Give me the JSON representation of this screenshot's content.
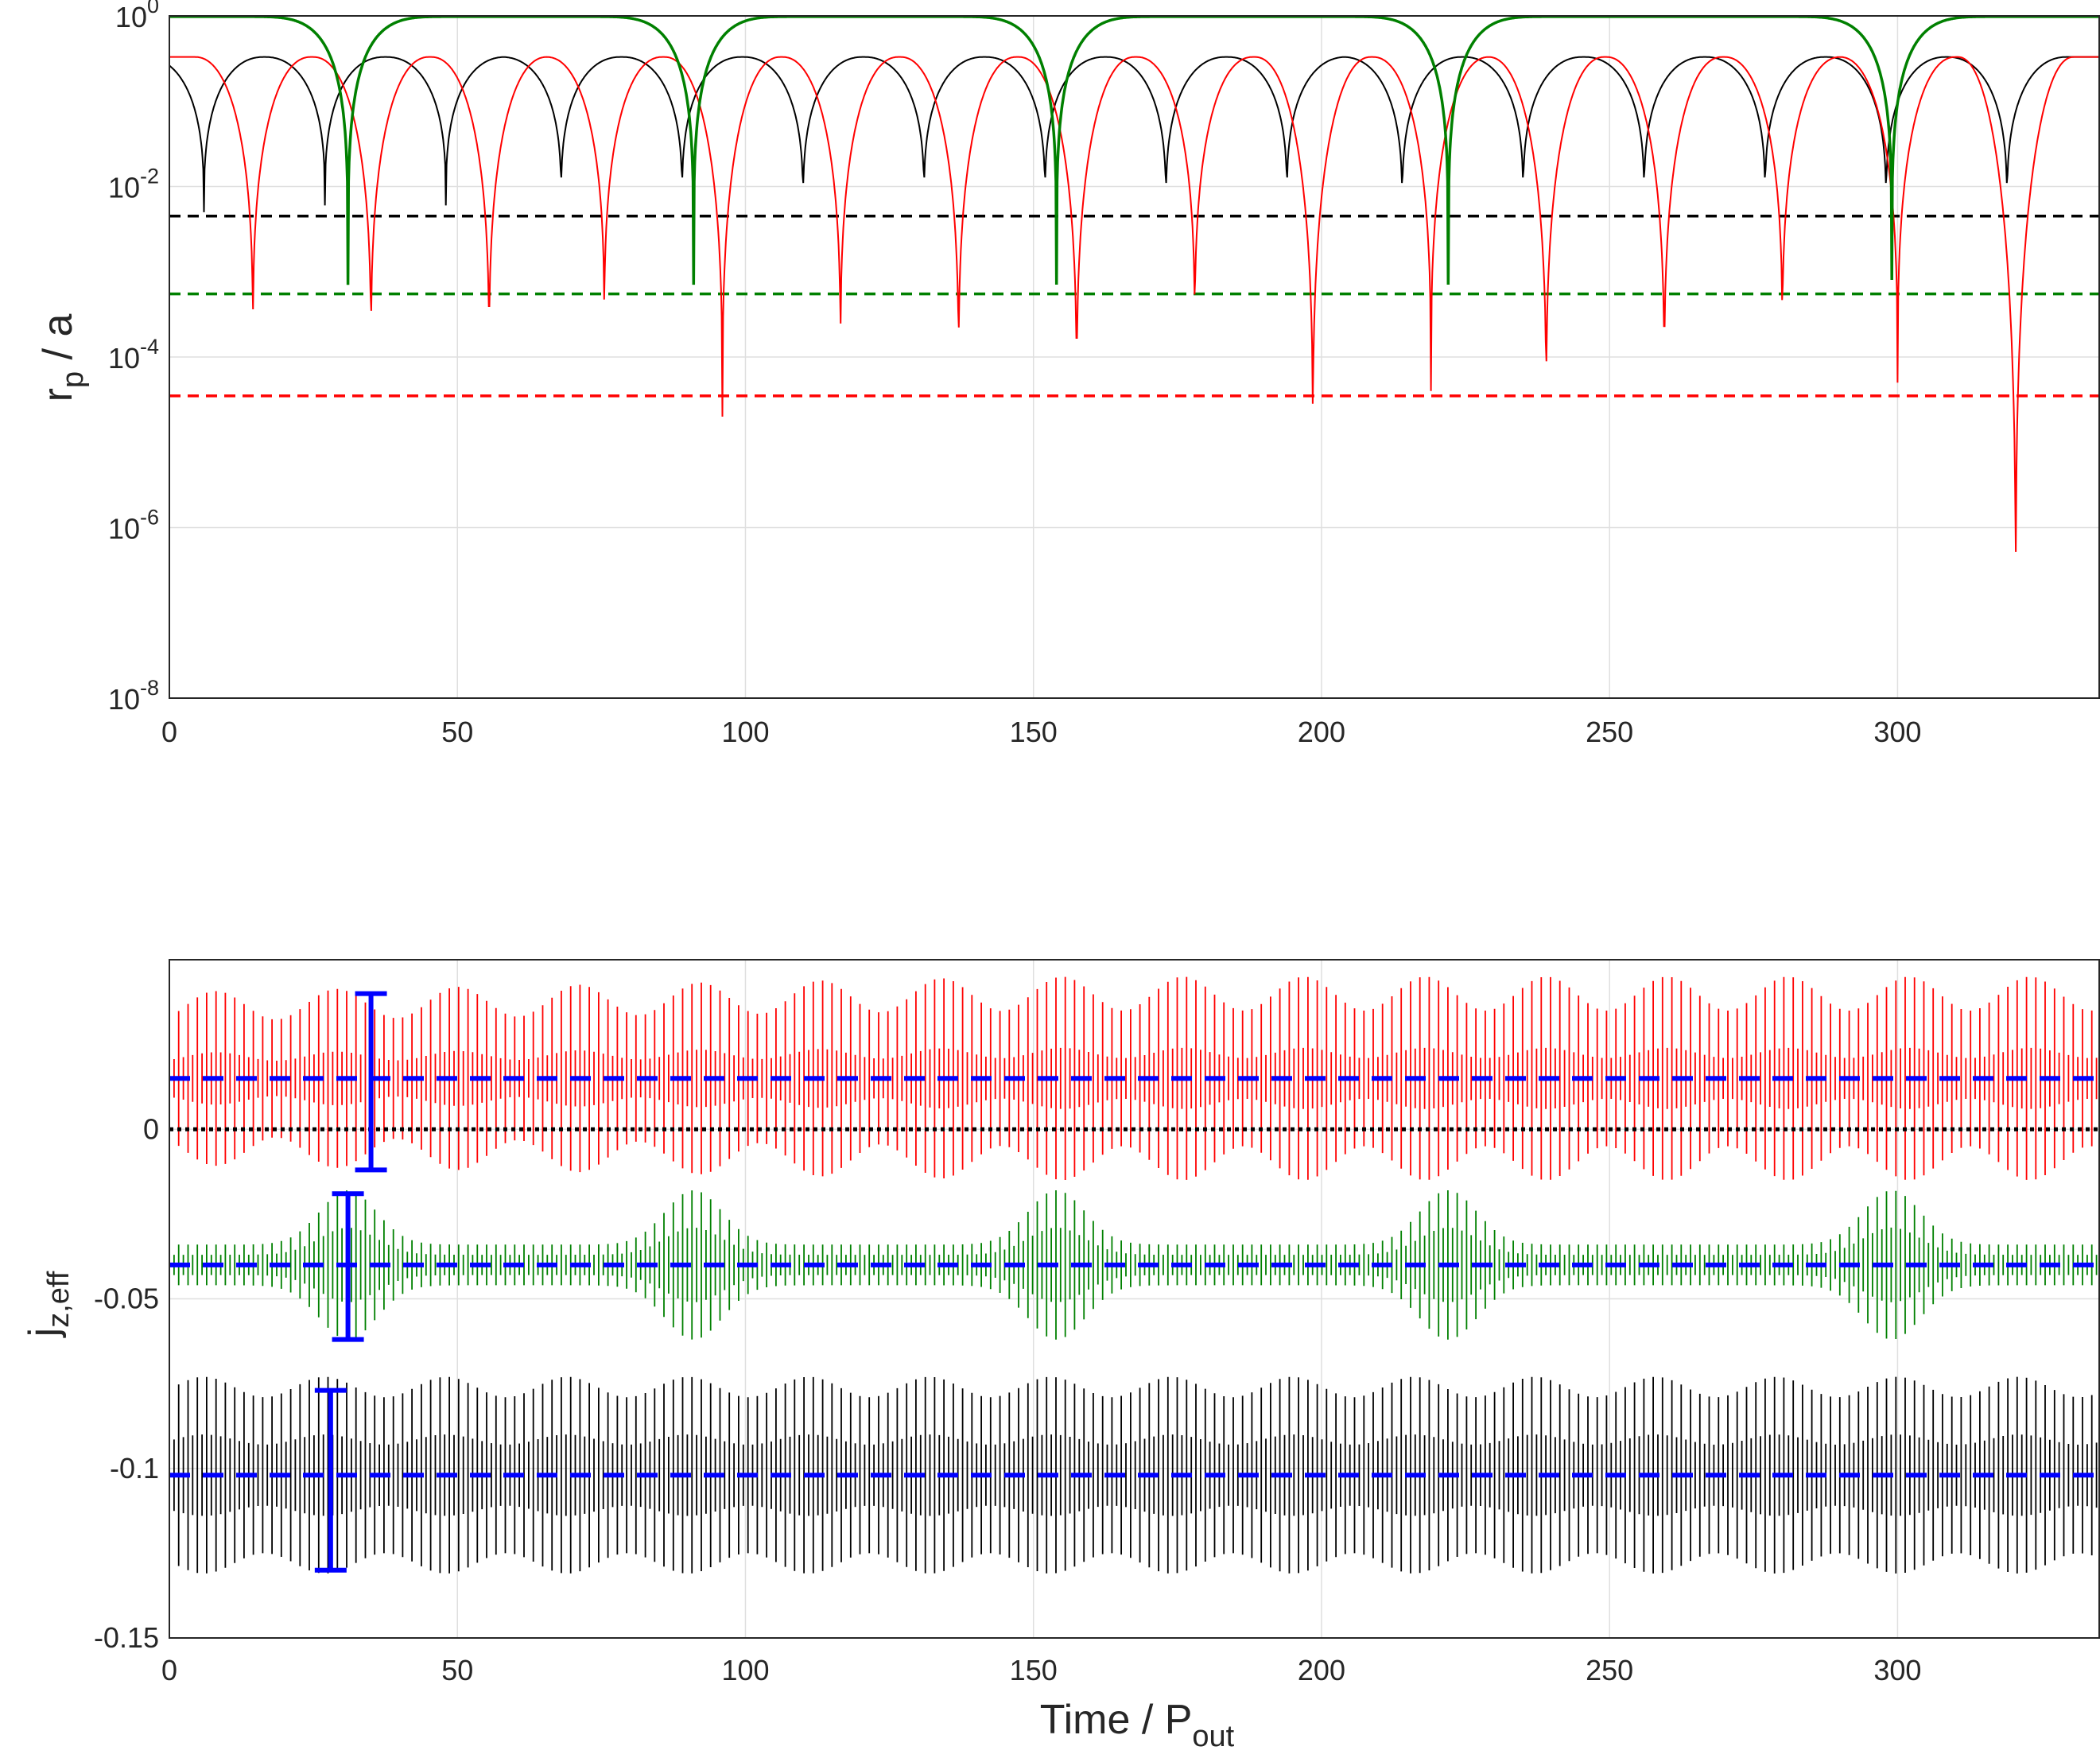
{
  "figure": {
    "background": "#ffffff",
    "axis_color": "#262626",
    "grid_color": "#dfdfdf"
  },
  "chart_data": [
    {
      "type": "line",
      "yscale": "log",
      "ylabel": {
        "base": "r",
        "sub": "p",
        "rest": " / a"
      },
      "xlim": [
        0,
        335
      ],
      "ylim": [
        1e-08,
        1
      ],
      "xticks": [
        "0",
        "50",
        "100",
        "150",
        "200",
        "250",
        "300"
      ],
      "xtick_values": [
        0,
        50,
        100,
        150,
        200,
        250,
        300
      ],
      "yticks": [
        {
          "base": "10",
          "exp": "0"
        },
        {
          "base": "10",
          "exp": "-2"
        },
        {
          "base": "10",
          "exp": "-4"
        },
        {
          "base": "10",
          "exp": "-6"
        },
        {
          "base": "10",
          "exp": "-8"
        }
      ],
      "ytick_values": [
        1,
        0.01,
        0.0001,
        1e-06,
        1e-08
      ],
      "grid": true,
      "series": [
        {
          "color": "#000000",
          "max": 0.33,
          "period": 20.9,
          "min_times": [
            6,
            27,
            48,
            68,
            89,
            110,
            131,
            152,
            173,
            194,
            214,
            235,
            256,
            277,
            298,
            319
          ],
          "min_values": [
            0.005,
            0.006,
            0.006,
            0.006,
            0.006,
            0.005,
            0.006,
            0.006,
            0.005,
            0.006,
            0.005,
            0.006,
            0.006,
            0.006,
            0.005,
            0.005
          ]
        },
        {
          "color": "#ff0000",
          "max": 0.33,
          "period": 20.3,
          "min_times": [
            14.5,
            35,
            55.5,
            75.5,
            96,
            116.5,
            137,
            157.5,
            178,
            198.5,
            219,
            239,
            259.5,
            280,
            300,
            320.5
          ],
          "min_values": [
            0.00011,
            7e-05,
            6e-05,
            0.00015,
            2e-05,
            7e-05,
            4e-05,
            2e-05,
            0.00012,
            5.5e-06,
            4e-05,
            1.3e-05,
            3e-05,
            0.0001,
            5e-05,
            5e-08
          ]
        },
        {
          "color": "#008000",
          "max": 0.98,
          "min_times": [
            31,
            91,
            154,
            222,
            299
          ],
          "min_values": [
            0.0007,
            0.0007,
            0.0007,
            0.0007,
            0.0008
          ]
        }
      ],
      "reference_lines": [
        {
          "color": "#000000",
          "value": 0.0045
        },
        {
          "color": "#008000",
          "value": 0.00055
        },
        {
          "color": "#ff0000",
          "value": 3.5e-05
        }
      ]
    },
    {
      "type": "line",
      "ylabel": {
        "base": "j",
        "sub": "z,eff"
      },
      "xlabel": {
        "base": "Time  / P",
        "sub": "out"
      },
      "xlim": [
        0,
        335
      ],
      "ylim": [
        -0.15,
        0.05
      ],
      "xticks": [
        "0",
        "50",
        "100",
        "150",
        "200",
        "250",
        "300"
      ],
      "xtick_values": [
        0,
        50,
        100,
        150,
        200,
        250,
        300
      ],
      "yticks": [
        "0",
        "-0.05",
        "-0.1",
        "-0.15"
      ],
      "ytick_values": [
        0,
        -0.05,
        -0.1,
        -0.15
      ],
      "grid": true,
      "series": [
        {
          "color": "#ff0000",
          "center": 0.015,
          "outer_amplitude": [
            0.02,
            0.03
          ],
          "inner_amplitude": [
            0.006,
            0.009
          ],
          "modulation_period": 21,
          "oscillation_period": 1.62
        },
        {
          "color": "#008000",
          "center": -0.04,
          "outer_amplitude": [
            0.006,
            0.022
          ],
          "inner_amplitude": [
            0.003,
            0.011
          ],
          "burst_times": [
            31,
            91,
            154,
            222,
            299
          ],
          "oscillation_period": 1.62
        },
        {
          "color": "#000000",
          "center": -0.102,
          "outer_amplitude": [
            0.023,
            0.029
          ],
          "inner_amplitude": [
            0.009,
            0.012
          ],
          "modulation_period": 21,
          "oscillation_period": 1.62
        }
      ],
      "mean_lines": [
        {
          "color": "#0000ff",
          "value": 0.015
        },
        {
          "color": "#0000ff",
          "value": -0.04
        },
        {
          "color": "#0000ff",
          "value": -0.102
        }
      ],
      "zero_line": {
        "color": "#000000",
        "value": 0
      },
      "error_bars": [
        {
          "color": "#0000ff",
          "x": 35,
          "low": -0.012,
          "high": 0.04
        },
        {
          "color": "#0000ff",
          "x": 31,
          "low": -0.062,
          "high": -0.019
        },
        {
          "color": "#0000ff",
          "x": 28,
          "low": -0.13,
          "high": -0.077
        }
      ]
    }
  ]
}
